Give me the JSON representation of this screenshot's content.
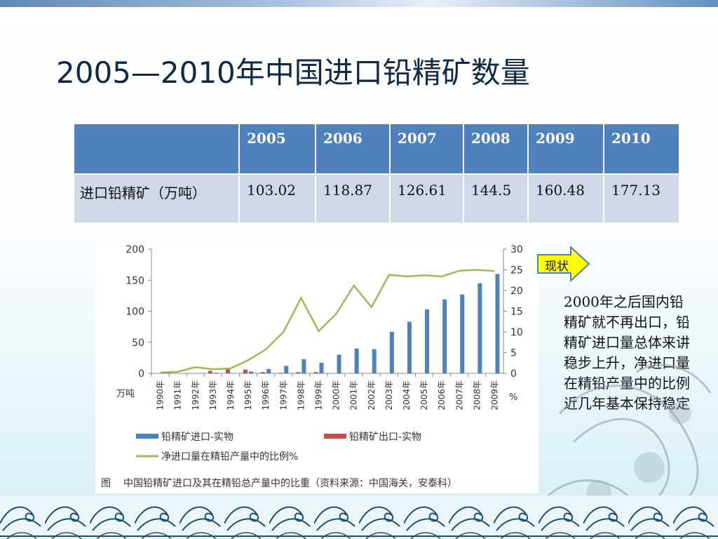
{
  "slide": {
    "title": "2005—2010年中国进口铅精矿数量"
  },
  "table": {
    "header": [
      "",
      "2005",
      "2006",
      "2007",
      "2008",
      "2009",
      "2010"
    ],
    "row_label": "进口铅精矿（万吨）",
    "row_values": [
      "103.02",
      "118.87",
      "126.61",
      "144.5",
      "160.48",
      "177.13"
    ]
  },
  "callout": {
    "label": "现状",
    "note": "2000年之后国内铅精矿就不再出口，铅精矿进口量总体来讲稳步上升，净进口量在精铅产量中的比例近几年基本保持稳定"
  },
  "colors": {
    "bar_import": "#4f81bd",
    "bar_export": "#c0504d",
    "line_ratio": "#9bbb59",
    "table_header": "#4f81bd",
    "table_row": "#d0d8e8",
    "arrow_fill": "#ffff00",
    "arrow_stroke": "#4f81bd"
  },
  "chart_data": {
    "type": "bar",
    "categories": [
      "1990年",
      "1991年",
      "1992年",
      "1993年",
      "1994年",
      "1995年",
      "1996年",
      "1997年",
      "1998年",
      "1999年",
      "2000年",
      "2001年",
      "2002年",
      "2003年",
      "2004年",
      "2005年",
      "2006年",
      "2007年",
      "2008年",
      "2009年"
    ],
    "series": [
      {
        "name": "铅精矿进口-实物",
        "type": "bar",
        "axis": "left",
        "values": [
          0,
          0,
          0,
          1,
          0.5,
          3,
          7,
          12,
          23,
          17,
          30,
          40,
          39,
          67,
          83,
          103,
          119,
          127,
          145,
          160
        ]
      },
      {
        "name": "铅精矿出口-实物",
        "type": "bar",
        "axis": "left",
        "values": [
          0,
          0,
          0,
          4,
          7,
          6,
          2,
          1,
          2,
          2,
          0,
          0,
          0,
          0,
          0,
          0,
          0,
          0,
          0,
          0
        ]
      },
      {
        "name": "净进口量在精铅产量中的比例%",
        "type": "line",
        "axis": "right",
        "values": [
          0.2,
          0.4,
          1.5,
          1.0,
          1.2,
          3.2,
          5.8,
          10.0,
          18.2,
          10.2,
          14.4,
          21.2,
          16.0,
          23.8,
          23.4,
          23.7,
          23.4,
          24.8,
          25.0,
          24.7
        ]
      }
    ],
    "y_left": {
      "min": 0,
      "max": 200,
      "ticks": [
        0,
        50,
        100,
        150,
        200
      ],
      "unit": "万吨"
    },
    "y_right": {
      "min": 0,
      "max": 30,
      "ticks": [
        0,
        5,
        10,
        15,
        20,
        25,
        30
      ],
      "unit": "%"
    },
    "grid": false,
    "legend": "bottom",
    "caption_lead": "图",
    "caption": "中国铅精矿进口及其在精铅总产量中的比重（资料来源：中国海关，安泰科）"
  }
}
